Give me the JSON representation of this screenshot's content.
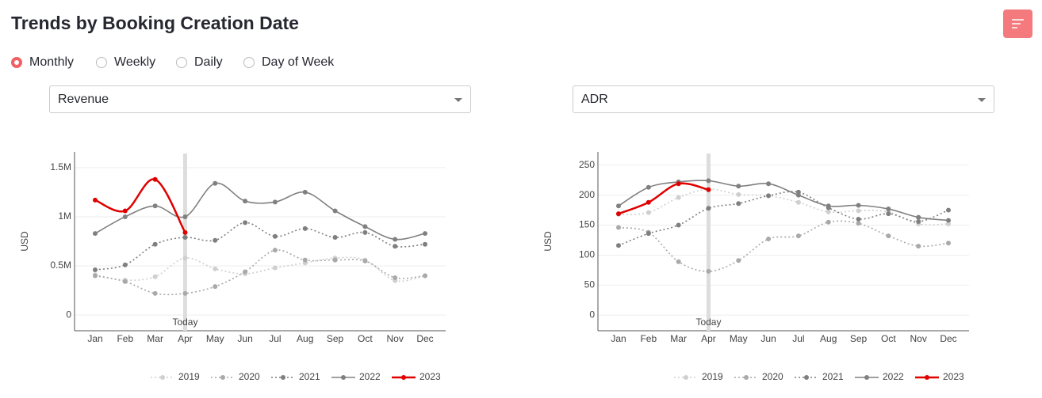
{
  "title": "Trends by Booking Creation Date",
  "radio_options": [
    "Monthly",
    "Weekly",
    "Daily",
    "Day of Week"
  ],
  "selected_option": 0,
  "chart_data": [
    {
      "type": "line",
      "metric": "Revenue",
      "ylabel": "USD",
      "categories": [
        "Jan",
        "Feb",
        "Mar",
        "Apr",
        "May",
        "Jun",
        "Jul",
        "Aug",
        "Sep",
        "Oct",
        "Nov",
        "Dec"
      ],
      "ylim": [
        -160000,
        1660000
      ],
      "yticks": [
        0,
        {
          "value": 500000,
          "label": "0.5M"
        },
        {
          "value": 1000000,
          "label": "1M"
        },
        {
          "value": 1500000,
          "label": "1.5M"
        }
      ],
      "grid": true,
      "annotations": [
        {
          "text": "Today",
          "x": "Apr"
        }
      ],
      "series": [
        {
          "name": "2019",
          "color": "#cfcfcf",
          "dash": "dot",
          "values": [
            410000,
            355000,
            390000,
            580000,
            470000,
            420000,
            480000,
            530000,
            580000,
            560000,
            350000,
            400000
          ]
        },
        {
          "name": "2020",
          "color": "#a9a9a9",
          "dash": "dot",
          "values": [
            400000,
            340000,
            220000,
            220000,
            290000,
            440000,
            660000,
            560000,
            560000,
            550000,
            380000,
            400000
          ]
        },
        {
          "name": "2021",
          "color": "#7f7f7f",
          "dash": "dot",
          "values": [
            460000,
            510000,
            720000,
            790000,
            760000,
            940000,
            800000,
            880000,
            790000,
            840000,
            700000,
            720000
          ]
        },
        {
          "name": "2022",
          "color": "#808080",
          "dash": "solid",
          "values": [
            830000,
            1000000,
            1110000,
            1000000,
            1340000,
            1160000,
            1150000,
            1250000,
            1060000,
            900000,
            770000,
            830000
          ]
        },
        {
          "name": "2023",
          "color": "#e00000",
          "dash": "solid",
          "values": [
            1170000,
            1060000,
            1380000,
            840000,
            null,
            null,
            null,
            null,
            null,
            null,
            null,
            null
          ]
        }
      ]
    },
    {
      "type": "line",
      "metric": "ADR",
      "ylabel": "USD",
      "categories": [
        "Jan",
        "Feb",
        "Mar",
        "Apr",
        "May",
        "Jun",
        "Jul",
        "Aug",
        "Sep",
        "Oct",
        "Nov",
        "Dec"
      ],
      "ylim": [
        -26,
        272
      ],
      "yticks": [
        0,
        50,
        100,
        150,
        200,
        250
      ],
      "grid": true,
      "annotations": [
        {
          "text": "Today",
          "x": "Apr"
        }
      ],
      "series": [
        {
          "name": "2019",
          "color": "#cfcfcf",
          "dash": "dot",
          "values": [
            168,
            171,
            196,
            210,
            201,
            199,
            188,
            172,
            174,
            172,
            152,
            152
          ]
        },
        {
          "name": "2020",
          "color": "#a9a9a9",
          "dash": "dot",
          "values": [
            146,
            138,
            89,
            73,
            91,
            127,
            132,
            155,
            153,
            132,
            115,
            120
          ]
        },
        {
          "name": "2021",
          "color": "#7f7f7f",
          "dash": "dot",
          "values": [
            116,
            136,
            150,
            178,
            186,
            199,
            205,
            179,
            160,
            169,
            156,
            175
          ]
        },
        {
          "name": "2022",
          "color": "#808080",
          "dash": "solid",
          "values": [
            182,
            213,
            222,
            224,
            215,
            219,
            200,
            182,
            183,
            177,
            163,
            158
          ]
        },
        {
          "name": "2023",
          "color": "#e00000",
          "dash": "solid",
          "values": [
            169,
            188,
            219,
            209,
            null,
            null,
            null,
            null,
            null,
            null,
            null,
            null
          ]
        }
      ]
    }
  ]
}
